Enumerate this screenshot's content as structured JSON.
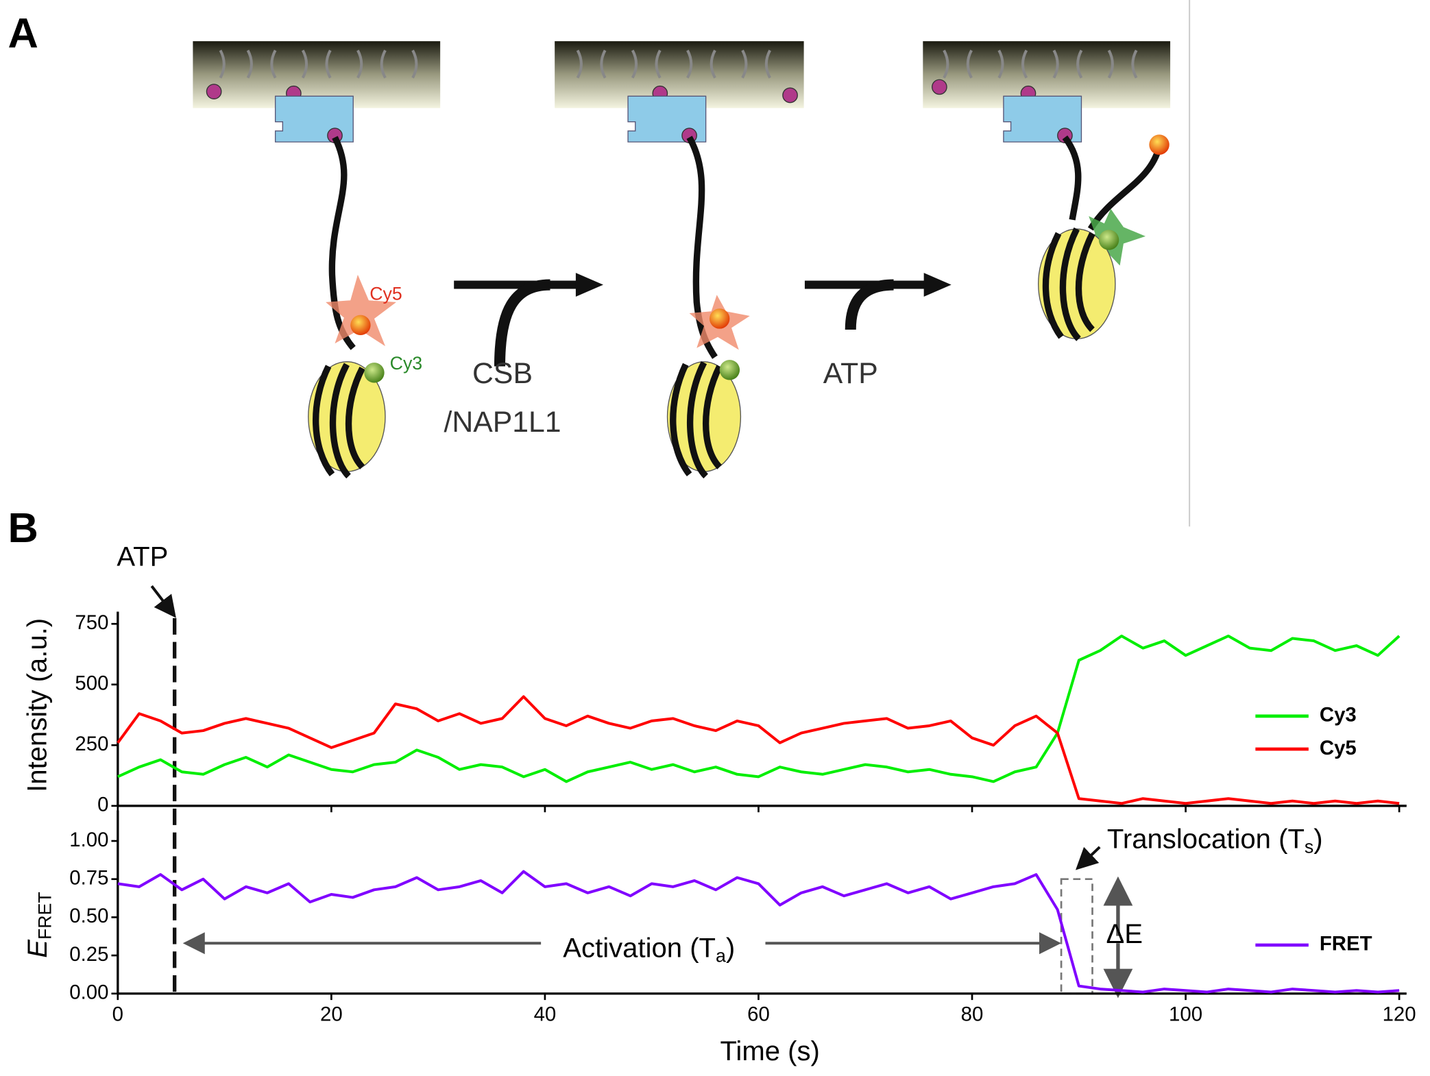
{
  "panel_a": {
    "letter": "A",
    "cy5": "Cy5",
    "cy3": "Cy3",
    "step1": [
      "CSB",
      "/NAP1L1"
    ],
    "step2": "ATP"
  },
  "panel_b": {
    "letter": "B"
  },
  "chart_data": [
    {
      "type": "line",
      "ylabel": "Intensity (a.u.)",
      "annotation": "ATP",
      "x": [
        0,
        2,
        4,
        6,
        8,
        10,
        12,
        14,
        16,
        18,
        20,
        22,
        24,
        26,
        28,
        30,
        32,
        34,
        36,
        38,
        40,
        42,
        44,
        46,
        48,
        50,
        52,
        54,
        56,
        58,
        60,
        62,
        64,
        66,
        68,
        70,
        72,
        74,
        76,
        78,
        80,
        82,
        84,
        86,
        88,
        90,
        92,
        94,
        96,
        98,
        100,
        102,
        104,
        106,
        108,
        110,
        112,
        114,
        116,
        118,
        120
      ],
      "series": [
        {
          "name": "Cy3",
          "color": "#00ee00",
          "values": [
            120,
            160,
            190,
            140,
            130,
            170,
            200,
            160,
            210,
            180,
            150,
            140,
            170,
            180,
            230,
            200,
            150,
            170,
            160,
            120,
            150,
            100,
            140,
            160,
            180,
            150,
            170,
            140,
            160,
            130,
            120,
            160,
            140,
            130,
            150,
            170,
            160,
            140,
            150,
            130,
            120,
            100,
            140,
            160,
            300,
            600,
            640,
            700,
            650,
            680,
            620,
            660,
            700,
            650,
            640,
            690,
            680,
            640,
            660,
            620,
            700
          ]
        },
        {
          "name": "Cy5",
          "color": "#ff0000",
          "values": [
            260,
            380,
            350,
            300,
            310,
            340,
            360,
            340,
            320,
            280,
            240,
            270,
            300,
            420,
            400,
            350,
            380,
            340,
            360,
            450,
            360,
            330,
            370,
            340,
            320,
            350,
            360,
            330,
            310,
            350,
            330,
            260,
            300,
            320,
            340,
            350,
            360,
            320,
            330,
            350,
            280,
            250,
            330,
            370,
            300,
            30,
            20,
            10,
            30,
            20,
            10,
            20,
            30,
            20,
            10,
            20,
            10,
            20,
            10,
            20,
            10
          ]
        }
      ],
      "xlim": [
        0,
        120
      ],
      "xticks": [
        0,
        20,
        40,
        60,
        80,
        100,
        120
      ],
      "ylim": [
        0,
        800
      ],
      "yticks": [
        0,
        250,
        500,
        750
      ]
    },
    {
      "type": "line",
      "ylabel": {
        "text": "E",
        "sub": "FRET"
      },
      "xlabel": "Time (s)",
      "annotations": {
        "translocation": {
          "text": "Translocation (T",
          "sub": "s",
          "close": ")"
        },
        "activation": {
          "text": "Activation (T",
          "sub": "a",
          "close": ")"
        },
        "delta": "ΔE"
      },
      "x": [
        0,
        2,
        4,
        6,
        8,
        10,
        12,
        14,
        16,
        18,
        20,
        22,
        24,
        26,
        28,
        30,
        32,
        34,
        36,
        38,
        40,
        42,
        44,
        46,
        48,
        50,
        52,
        54,
        56,
        58,
        60,
        62,
        64,
        66,
        68,
        70,
        72,
        74,
        76,
        78,
        80,
        82,
        84,
        86,
        88,
        90,
        92,
        94,
        96,
        98,
        100,
        102,
        104,
        106,
        108,
        110,
        112,
        114,
        116,
        118,
        120
      ],
      "series": [
        {
          "name": "FRET",
          "color": "#8000ff",
          "values": [
            0.72,
            0.7,
            0.78,
            0.68,
            0.75,
            0.62,
            0.7,
            0.66,
            0.72,
            0.6,
            0.65,
            0.63,
            0.68,
            0.7,
            0.76,
            0.68,
            0.7,
            0.74,
            0.66,
            0.8,
            0.7,
            0.72,
            0.66,
            0.7,
            0.64,
            0.72,
            0.7,
            0.74,
            0.68,
            0.76,
            0.72,
            0.58,
            0.66,
            0.7,
            0.64,
            0.68,
            0.72,
            0.66,
            0.7,
            0.62,
            0.66,
            0.7,
            0.72,
            0.78,
            0.55,
            0.05,
            0.03,
            0.02,
            0.01,
            0.03,
            0.02,
            0.01,
            0.03,
            0.02,
            0.01,
            0.03,
            0.02,
            0.01,
            0.02,
            0.01,
            0.02
          ]
        }
      ],
      "xlim": [
        0,
        120
      ],
      "xticks": [
        0,
        20,
        40,
        60,
        80,
        100,
        120
      ],
      "ylim": [
        0,
        1.2
      ],
      "yticks": [
        {
          "value": 0,
          "label": "0.00"
        },
        {
          "value": 0.25,
          "label": "0.25"
        },
        {
          "value": 0.5,
          "label": "0.50"
        },
        {
          "value": 0.75,
          "label": "0.75"
        },
        {
          "value": 1,
          "label": "1.00"
        }
      ]
    }
  ]
}
